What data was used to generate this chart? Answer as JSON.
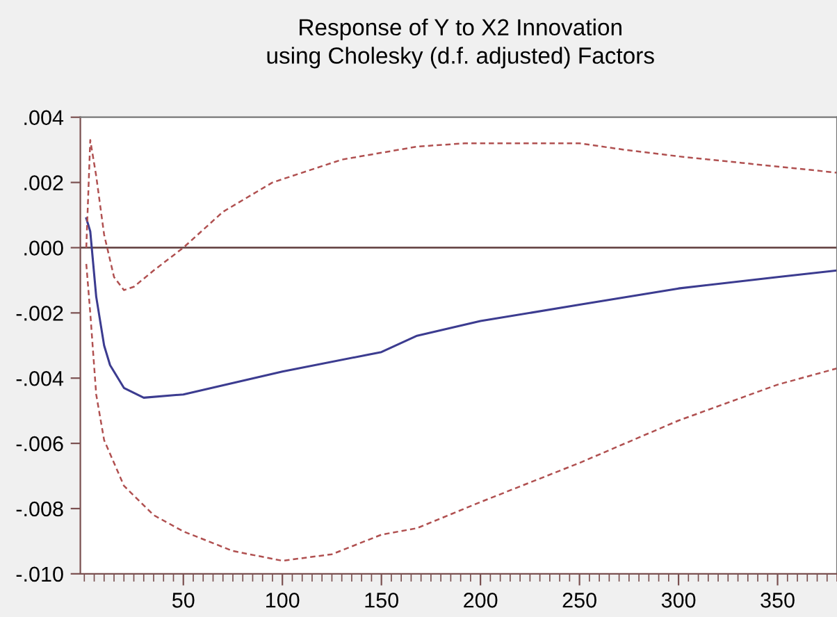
{
  "chart_data": {
    "type": "line",
    "title": "Response of Y to X2 Innovation\nusing Cholesky (d.f. adjusted) Factors",
    "xlim": [
      -2,
      380
    ],
    "xticks": [
      50,
      100,
      150,
      200,
      250,
      300,
      350
    ],
    "ylim": [
      -0.01,
      0.004
    ],
    "yticks": [
      {
        "value": -0.01,
        "label": "-.010"
      },
      {
        "value": -0.008,
        "label": "-.008"
      },
      {
        "value": -0.006,
        "label": "-.006"
      },
      {
        "value": -0.004,
        "label": "-.004"
      },
      {
        "value": -0.002,
        "label": "-.002"
      },
      {
        "value": 0,
        "label": ".000"
      },
      {
        "value": 0.002,
        "label": ".002"
      },
      {
        "value": 0.004,
        "label": ".004"
      }
    ],
    "grid": false,
    "legend": false,
    "ref_lines": [
      {
        "axis": "y",
        "value": 0,
        "color": "#6a4a4a",
        "line_style": "solid"
      }
    ],
    "series": [
      {
        "color": "#3c3c90",
        "line_style": "solid",
        "x": [
          1,
          3,
          6,
          10,
          13,
          20,
          30,
          50,
          100,
          150,
          168,
          200,
          250,
          300,
          350,
          380
        ],
        "values": [
          0.0009,
          0.0005,
          -0.0015,
          -0.003,
          -0.0036,
          -0.0043,
          -0.0046,
          -0.0045,
          -0.0038,
          -0.0032,
          -0.0027,
          -0.00225,
          -0.00175,
          -0.00125,
          -0.0009,
          -0.0007
        ]
      },
      {
        "color": "#b05050",
        "line_style": "dashed",
        "x": [
          1,
          3,
          6,
          10,
          15,
          20,
          25,
          35,
          50,
          70,
          95,
          130,
          168,
          192,
          220,
          250,
          273,
          300,
          332,
          380
        ],
        "values": [
          0.0,
          0.0033,
          0.0022,
          0.0004,
          -0.0009,
          -0.0013,
          -0.0012,
          -0.0007,
          0.0,
          0.0011,
          0.002,
          0.0027,
          0.0031,
          0.0032,
          0.0032,
          0.0032,
          0.003,
          0.0028,
          0.0026,
          0.0023
        ]
      },
      {
        "color": "#b05050",
        "line_style": "dashed",
        "x": [
          1,
          3,
          6,
          10,
          20,
          35,
          50,
          75,
          100,
          125,
          150,
          168,
          200,
          250,
          300,
          350,
          380
        ],
        "values": [
          -0.0005,
          -0.002,
          -0.0045,
          -0.0059,
          -0.0073,
          -0.0082,
          -0.0087,
          -0.0093,
          -0.0096,
          -0.0094,
          -0.0088,
          -0.0086,
          -0.0078,
          -0.0066,
          -0.0053,
          -0.0042,
          -0.0037
        ]
      }
    ]
  }
}
